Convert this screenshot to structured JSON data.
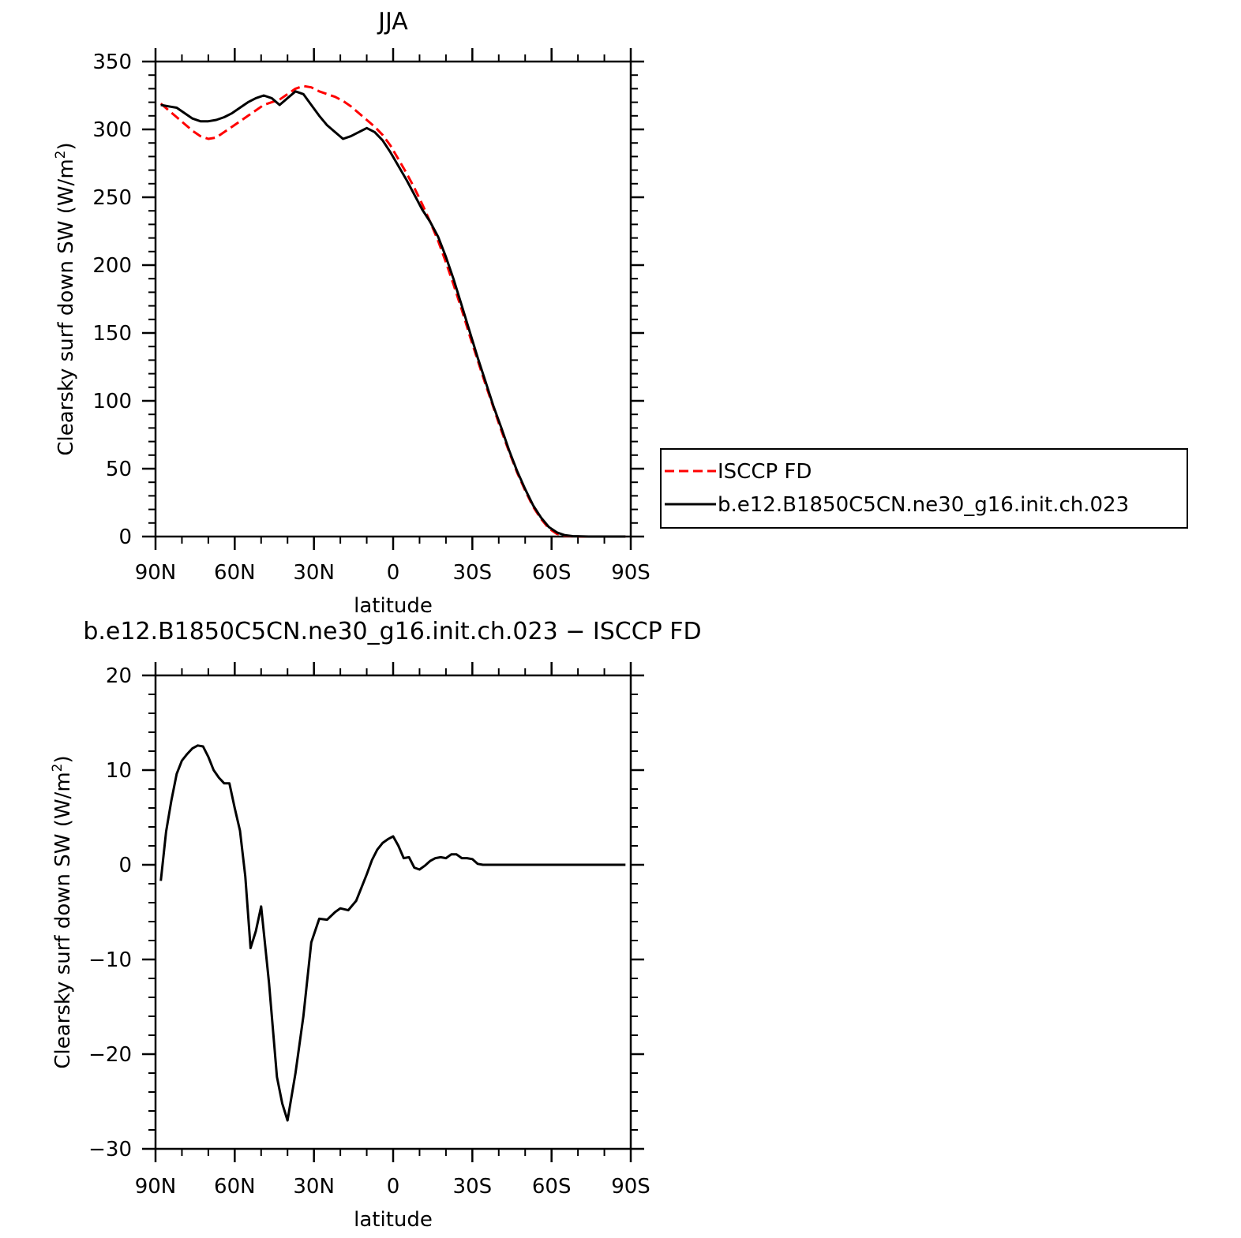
{
  "colors": {
    "model": "#000000",
    "obs": "#ff0000",
    "axis": "#000000"
  },
  "chart_data": [
    {
      "type": "line",
      "title": "JJA",
      "xlabel": "latitude",
      "ylabel": "Clearsky surf down SW (W/m",
      "ylabel_sup": "2",
      "ylabel_close": ")",
      "xlim": [
        90,
        -90
      ],
      "ylim": [
        0,
        350
      ],
      "xticks": [
        90,
        60,
        30,
        0,
        -30,
        -60,
        -90
      ],
      "xtick_labels": [
        "90N",
        "60N",
        "30N",
        "0",
        "30S",
        "60S",
        "90S"
      ],
      "yticks": [
        0,
        50,
        100,
        150,
        200,
        250,
        300,
        350
      ],
      "ytick_labels": [
        "0",
        "50",
        "100",
        "150",
        "200",
        "250",
        "300",
        "350"
      ],
      "legend": {
        "placement": "right",
        "entries": [
          {
            "label": "ISCCP FD",
            "series": "ISCCP FD"
          },
          {
            "label": "b.e12.B1850C5CN.ne30_g16.init.ch.023",
            "series": "b.e12.B1850C5CN.ne30_g16.init.ch.023"
          }
        ]
      },
      "series": [
        {
          "name": "ISCCP FD",
          "style": "dashed",
          "color": "#ff0000",
          "x": [
            88,
            85,
            82,
            79,
            76,
            73,
            70,
            67,
            64,
            61,
            58,
            55,
            52,
            49,
            46,
            43,
            40,
            37,
            34,
            31,
            28,
            25,
            22,
            19,
            16,
            13,
            10,
            7,
            4,
            1,
            -2,
            -5,
            -8,
            -11,
            -14,
            -17,
            -20,
            -23,
            -26,
            -29,
            -32,
            -35,
            -38,
            -41,
            -44,
            -47,
            -50,
            -53,
            -56,
            -59,
            -62,
            -65,
            -68,
            -71,
            -74,
            -77,
            -80,
            -83,
            -86,
            -88
          ],
          "y": [
            319,
            314,
            309,
            304,
            299,
            295,
            293,
            294,
            298,
            302,
            306,
            310,
            314,
            318,
            320,
            322,
            326,
            330,
            332,
            331,
            328,
            326,
            324,
            321,
            317,
            312,
            307,
            302,
            296,
            288,
            278,
            268,
            257,
            245,
            232,
            218,
            202,
            185,
            167,
            148,
            130,
            112,
            95,
            78,
            62,
            47,
            34,
            22,
            13,
            6,
            2,
            0.6,
            0.1,
            0,
            0,
            0,
            0,
            0,
            0,
            0
          ]
        },
        {
          "name": "b.e12.B1850C5CN.ne30_g16.init.ch.023",
          "style": "solid",
          "color": "#000000",
          "x": [
            88,
            85,
            82,
            79,
            76,
            73,
            70,
            67,
            64,
            61,
            58,
            55,
            52,
            49,
            46,
            43,
            40,
            37,
            34,
            31,
            28,
            25,
            22,
            19,
            16,
            13,
            10,
            7,
            4,
            1,
            -2,
            -5,
            -8,
            -11,
            -14,
            -17,
            -20,
            -23,
            -26,
            -29,
            -32,
            -35,
            -38,
            -41,
            -44,
            -47,
            -50,
            -53,
            -56,
            -59,
            -62,
            -65,
            -68,
            -71,
            -74,
            -77,
            -80,
            -83,
            -86,
            -88
          ],
          "y": [
            318,
            317,
            316,
            312,
            308,
            306,
            306,
            307,
            309,
            312,
            316,
            320,
            323,
            325,
            323,
            318,
            323,
            328,
            326,
            318,
            310,
            303,
            298,
            293,
            295,
            298,
            301,
            298,
            292,
            283,
            273,
            263,
            252,
            241,
            232,
            221,
            206,
            189,
            170,
            151,
            132,
            114,
            96,
            80,
            63,
            48,
            35,
            23,
            14,
            7,
            3,
            1,
            0.3,
            0.1,
            0,
            0,
            0,
            0,
            0,
            0
          ]
        }
      ]
    },
    {
      "type": "line",
      "title": "b.e12.B1850C5CN.ne30_g16.init.ch.023 − ISCCP FD",
      "xlabel": "latitude",
      "ylabel": "Clearsky surf down SW (W/m",
      "ylabel_sup": "2",
      "ylabel_close": ")",
      "xlim": [
        90,
        -90
      ],
      "ylim": [
        -30,
        20
      ],
      "xticks": [
        90,
        60,
        30,
        0,
        -30,
        -60,
        -90
      ],
      "xtick_labels": [
        "90N",
        "60N",
        "30N",
        "0",
        "30S",
        "60S",
        "90S"
      ],
      "yticks": [
        -30,
        -20,
        -10,
        0,
        10,
        20
      ],
      "ytick_labels": [
        "−30",
        "−20",
        "−10",
        "0",
        "10",
        "20"
      ],
      "series": [
        {
          "style": "solid",
          "color": "#000000",
          "x": [
            88,
            86,
            84,
            82,
            80,
            78,
            76,
            74,
            72,
            70,
            68,
            66,
            64,
            62,
            60,
            58,
            56,
            54,
            52,
            50,
            47,
            44,
            42,
            40,
            37,
            34,
            31,
            28,
            25,
            22,
            20,
            17,
            14,
            12,
            10,
            8,
            6,
            4,
            2,
            0,
            -2,
            -4,
            -6,
            -8,
            -10,
            -12,
            -14,
            -16,
            -18,
            -20,
            -22,
            -24,
            -26,
            -28,
            -30,
            -32,
            -34,
            -36,
            -38,
            -40,
            -42,
            -44,
            -46,
            -48,
            -50,
            -52,
            -54,
            -56,
            -58,
            -60,
            -62,
            -64,
            -66,
            -68,
            -70,
            -72,
            -76,
            -80,
            -84,
            -88
          ],
          "y": [
            -1.7,
            3.5,
            6.8,
            9.6,
            11.0,
            11.7,
            12.3,
            12.6,
            12.5,
            11.4,
            10.0,
            9.2,
            8.6,
            8.6,
            6.0,
            3.6,
            -1.2,
            -8.8,
            -7.0,
            -4.4,
            -12.5,
            -22.4,
            -25.2,
            -27.0,
            -22.0,
            -16.0,
            -8.2,
            -5.7,
            -5.8,
            -5.0,
            -4.6,
            -4.8,
            -3.8,
            -2.4,
            -1.0,
            0.5,
            1.6,
            2.3,
            2.7,
            3.0,
            2.0,
            0.7,
            0.8,
            -0.3,
            -0.5,
            -0.1,
            0.4,
            0.7,
            0.8,
            0.7,
            1.1,
            1.1,
            0.7,
            0.7,
            0.6,
            0.1,
            0.0,
            0.0,
            0.0,
            0.0,
            0.0,
            0.0,
            0.0,
            0.0,
            0.0,
            0.0,
            0.0,
            0.0,
            0.0,
            0.0,
            0.0,
            0.0,
            0.0,
            0.0,
            0.0,
            0.0,
            0.0,
            0.0,
            0.0,
            0.0
          ]
        }
      ]
    }
  ]
}
